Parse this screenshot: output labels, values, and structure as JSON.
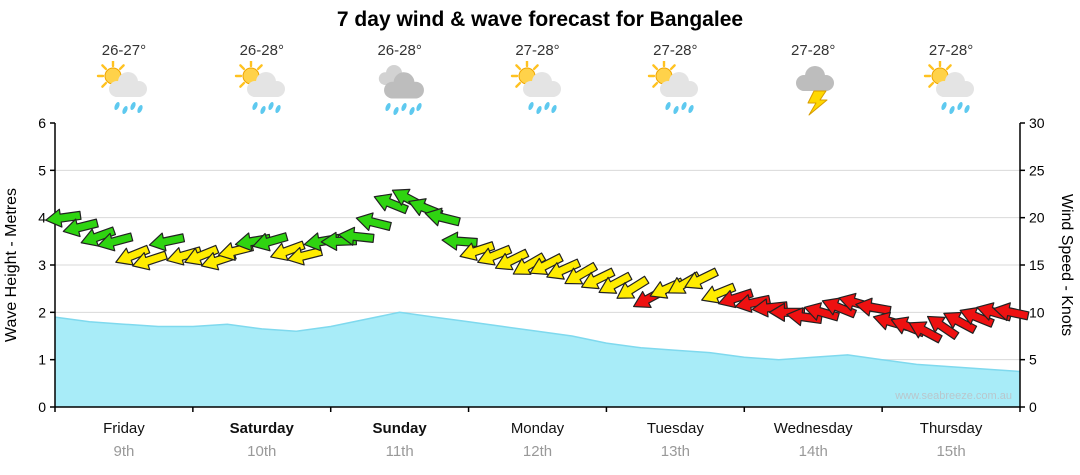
{
  "title": "7 day wind & wave forecast for Bangalee",
  "watermark": "www.seabreeze.com.au",
  "axes": {
    "left_label": "Wave Height - Metres",
    "right_label": "Wind Speed - Knots",
    "left_ticks": [
      0,
      1,
      2,
      3,
      4,
      5,
      6
    ],
    "right_ticks": [
      0,
      5,
      10,
      15,
      20,
      25,
      30
    ]
  },
  "days": [
    {
      "name": "Friday",
      "date": "9th",
      "temp": "26-27°",
      "icon": "sun-cloud-rain",
      "bold": false
    },
    {
      "name": "Saturday",
      "date": "10th",
      "temp": "26-28°",
      "icon": "sun-cloud-rain",
      "bold": true
    },
    {
      "name": "Sunday",
      "date": "11th",
      "temp": "26-28°",
      "icon": "rain-cloud",
      "bold": true
    },
    {
      "name": "Monday",
      "date": "12th",
      "temp": "27-28°",
      "icon": "sun-cloud-rain",
      "bold": false
    },
    {
      "name": "Tuesday",
      "date": "13th",
      "temp": "27-28°",
      "icon": "sun-cloud-rain",
      "bold": false
    },
    {
      "name": "Wednesday",
      "date": "14th",
      "temp": "27-28°",
      "icon": "storm-cloud",
      "bold": false
    },
    {
      "name": "Thursday",
      "date": "15th",
      "temp": "27-28°",
      "icon": "sun-cloud-rain",
      "bold": false
    }
  ],
  "colors": {
    "wave_fill": "#a8ecf8",
    "wave_edge": "#7fd9ee",
    "wind_green": "#2fd411",
    "wind_yellow": "#ffec00",
    "wind_red": "#ee1111",
    "arrow_outline": "#222222",
    "grid": "#d9d9d9",
    "axis": "#000000",
    "date_text": "#999999",
    "watermark_text": "#b9c6cc"
  },
  "chart_data": {
    "type": "area+wind-arrows",
    "title": "7 day wind & wave forecast for Bangalee",
    "x_categories": [
      "Friday 9th",
      "Saturday 10th",
      "Sunday 11th",
      "Monday 12th",
      "Tuesday 13th",
      "Wednesday 14th",
      "Thursday 15th"
    ],
    "wave_ylabel": "Wave Height - Metres",
    "wind_ylabel": "Wind Speed - Knots",
    "wave_ylim": [
      0,
      6
    ],
    "wind_ylim": [
      0,
      30
    ],
    "points_per_day_wind": 8,
    "wave_height_m": [
      1.9,
      1.8,
      1.75,
      1.7,
      1.7,
      1.75,
      1.65,
      1.6,
      1.7,
      1.85,
      2.0,
      1.9,
      1.8,
      1.7,
      1.6,
      1.5,
      1.35,
      1.25,
      1.2,
      1.15,
      1.05,
      1.0,
      1.05,
      1.1,
      1.0,
      0.9,
      0.85,
      0.8,
      0.75
    ],
    "wind_speed_knots": [
      20,
      19,
      18,
      17.5,
      16,
      15.5,
      17.5,
      16,
      16,
      15.5,
      16.5,
      17.5,
      17.5,
      16.5,
      16,
      17.5,
      17.5,
      18,
      19.5,
      21.5,
      22,
      21,
      20,
      17.5,
      16.5,
      16,
      15.5,
      15,
      15,
      14.5,
      14,
      13.5,
      13,
      12.5,
      11.5,
      12.5,
      13,
      13.5,
      12,
      11.5,
      11,
      10.5,
      10,
      9.5,
      10,
      10.5,
      11,
      10.5,
      9,
      8.5,
      8,
      8.5,
      9,
      9.5,
      10,
      10
    ],
    "wind_dir_deg": [
      172,
      166,
      160,
      165,
      158,
      162,
      168,
      164,
      158,
      162,
      166,
      170,
      164,
      160,
      166,
      170,
      178,
      186,
      194,
      202,
      208,
      202,
      194,
      184,
      162,
      158,
      154,
      150,
      153,
      156,
      150,
      154,
      152,
      148,
      152,
      156,
      150,
      154,
      158,
      162,
      168,
      174,
      180,
      188,
      196,
      202,
      196,
      190,
      196,
      202,
      208,
      214,
      208,
      202,
      196,
      192
    ],
    "color_rule": {
      "green_min_kt": 17,
      "yellow_min_kt": 12
    },
    "grid": true,
    "legend": false
  }
}
